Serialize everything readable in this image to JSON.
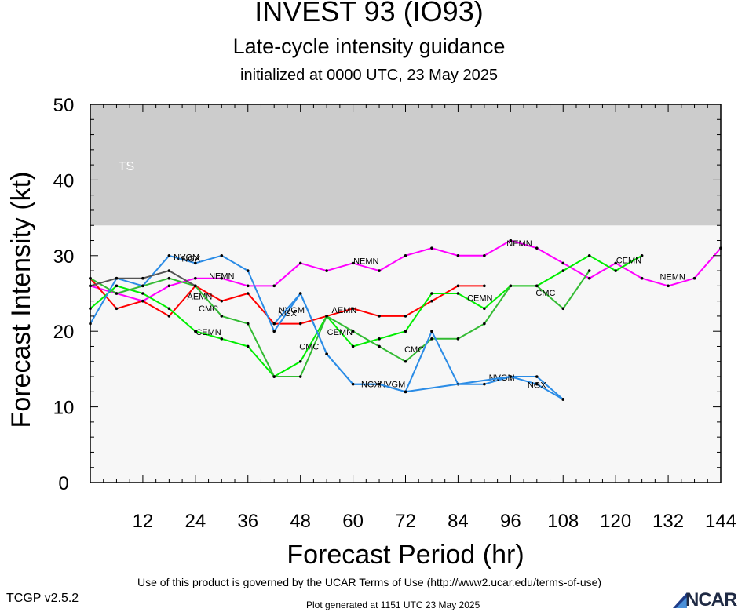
{
  "title": "INVEST 93 (IO93)",
  "subtitle": "Late-cycle intensity guidance",
  "initialized": "initialized at 0000 UTC, 23 May 2025",
  "footer_terms": "Use of this product is governed by the UCAR Terms of Use (http://www2.ucar.edu/terms-of-use)",
  "version": "TCGP v2.5.2",
  "generated": "Plot generated at 1151 UTC   23 May 2025",
  "logo_text": "NCAR",
  "chart_data": {
    "type": "line",
    "xlabel": "Forecast Period (hr)",
    "ylabel": "Forecast Intensity (kt)",
    "xlim": [
      0,
      144
    ],
    "ylim": [
      0,
      50
    ],
    "xticks": [
      12,
      24,
      36,
      48,
      60,
      72,
      84,
      96,
      108,
      120,
      132,
      144
    ],
    "yticks": [
      0,
      10,
      20,
      30,
      40,
      50
    ],
    "grid": false,
    "bands": [
      {
        "label": "TS",
        "from": 34,
        "to": 50,
        "color": "#cccccc"
      }
    ],
    "plot_background": "#f7f7f7",
    "series": [
      {
        "name": "NEMN",
        "color": "#ff00ff",
        "x": [
          0,
          6,
          12,
          18,
          24,
          30,
          36,
          42,
          48,
          54,
          60,
          66,
          72,
          78,
          84,
          90,
          96,
          102,
          108,
          114,
          120,
          126,
          132,
          138,
          144
        ],
        "y": [
          26,
          25,
          24,
          26,
          27,
          27,
          26,
          26,
          29,
          28,
          29,
          28,
          30,
          31,
          30,
          30,
          32,
          31,
          29,
          27,
          29,
          27,
          26,
          27,
          31
        ],
        "labels": [
          {
            "x": 30,
            "y": 26.9
          },
          {
            "x": 63,
            "y": 28.9
          },
          {
            "x": 98,
            "y": 31.2
          },
          {
            "x": 133,
            "y": 26.8
          }
        ]
      },
      {
        "name": "AEMN",
        "color": "#ff0000",
        "x": [
          0,
          6,
          12,
          18,
          24,
          30,
          36,
          42,
          48,
          54,
          60,
          66,
          72,
          78,
          84,
          90
        ],
        "y": [
          27,
          23,
          24,
          22,
          26,
          24,
          25,
          21,
          21,
          22,
          23,
          22,
          22,
          24,
          26,
          26
        ],
        "labels": [
          {
            "x": 25,
            "y": 24.2
          },
          {
            "x": 58,
            "y": 22.4
          }
        ]
      },
      {
        "name": "CEMN",
        "color": "#00ee00",
        "x": [
          0,
          6,
          12,
          18,
          24,
          30,
          36,
          42,
          48,
          54,
          60,
          66,
          72,
          78,
          84,
          90,
          96,
          102,
          108,
          114,
          120,
          126
        ],
        "y": [
          23,
          26,
          25,
          23,
          20,
          19,
          18,
          14,
          16,
          22,
          18,
          19,
          20,
          25,
          25,
          23,
          26,
          26,
          28,
          30,
          28,
          30
        ],
        "labels": [
          {
            "x": 27,
            "y": 19.5
          },
          {
            "x": 57,
            "y": 19.5
          },
          {
            "x": 89,
            "y": 24.0
          },
          {
            "x": 123,
            "y": 29.0
          }
        ]
      },
      {
        "name": "CMC",
        "color": "#33bb33",
        "x": [
          0,
          6,
          12,
          18,
          24,
          30,
          36,
          42,
          48,
          54,
          60,
          66,
          72,
          78,
          84,
          90,
          96,
          102,
          108,
          114
        ],
        "y": [
          27,
          25,
          26,
          27,
          26,
          22,
          21,
          14,
          14,
          22,
          20,
          18,
          16,
          19,
          19,
          21,
          26,
          26,
          23,
          28
        ],
        "labels": [
          {
            "x": 27,
            "y": 22.6
          },
          {
            "x": 50,
            "y": 17.6
          },
          {
            "x": 74,
            "y": 17.2
          },
          {
            "x": 104,
            "y": 24.7
          }
        ]
      },
      {
        "name": "NVGM",
        "color": "#2b8ce6",
        "x": [
          0,
          6,
          12,
          18,
          24,
          30,
          36,
          42,
          48,
          54,
          60,
          66,
          72,
          78,
          84,
          90,
          96,
          102,
          108
        ],
        "y": [
          21,
          27,
          26,
          30,
          29,
          30,
          28,
          20,
          25,
          17,
          13,
          13,
          12,
          20,
          13,
          13,
          14,
          14,
          11
        ],
        "labels": [
          {
            "x": 22,
            "y": 29.4
          },
          {
            "x": 46,
            "y": 22.4
          },
          {
            "x": 69,
            "y": 12.6
          },
          {
            "x": 94,
            "y": 13.5
          }
        ]
      },
      {
        "name": "NGX",
        "color": "#555555",
        "x": [
          0,
          6,
          12,
          18,
          24
        ],
        "y": [
          26,
          27,
          27,
          28,
          26
        ],
        "labels": [
          {
            "x": 23,
            "y": 29.2
          }
        ]
      },
      {
        "name": "NGX",
        "color": "#2b8ce6",
        "x": [
          42,
          48,
          54,
          60,
          66,
          72,
          96,
          102,
          108
        ],
        "y": [
          21,
          25,
          17,
          13,
          13,
          12,
          14,
          13,
          11
        ],
        "labels": [
          {
            "x": 45,
            "y": 22.0
          },
          {
            "x": 64,
            "y": 12.6
          },
          {
            "x": 102,
            "y": 12.5
          }
        ]
      }
    ]
  }
}
